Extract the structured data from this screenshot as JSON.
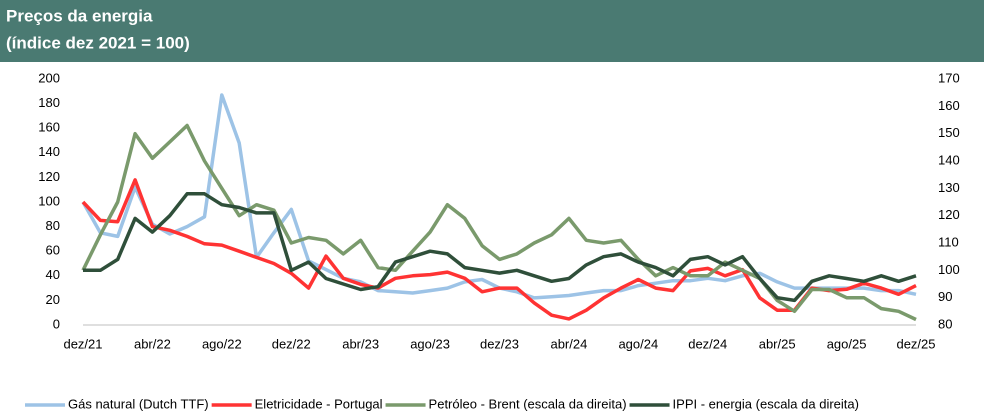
{
  "chart_data": {
    "type": "line",
    "title": "Preços da energia",
    "subtitle": "(índice dez 2021 = 100)",
    "categories": [
      "dez/21",
      null,
      null,
      null,
      "abr/22",
      null,
      null,
      null,
      "ago/22",
      null,
      null,
      null,
      "dez/22",
      null,
      null,
      null,
      "abr/23",
      null,
      null,
      null,
      "ago/23",
      null,
      null,
      null,
      "dez/23",
      null,
      null,
      null,
      "abr/24",
      null,
      null,
      null,
      "ago/24",
      null,
      null,
      null,
      "dez/24",
      null,
      null,
      null,
      "abr/25",
      null,
      null,
      null,
      "ago/25",
      null,
      null,
      null,
      "dez/25"
    ],
    "ylim": [
      0,
      200
    ],
    "yticks": [
      0,
      20,
      40,
      60,
      80,
      100,
      120,
      140,
      160,
      180,
      200
    ],
    "y2lim": [
      80,
      170
    ],
    "y2ticks": [
      80,
      90,
      100,
      110,
      120,
      130,
      140,
      150,
      160,
      170
    ],
    "legend": "bottom",
    "series": [
      {
        "name": "Gás natural (Dutch TTF)",
        "color": "#9dc3e6",
        "values": [
          100,
          75,
          72,
          112,
          82,
          74,
          80,
          88,
          187,
          148,
          55,
          75,
          94,
          52,
          45,
          38,
          35,
          28,
          27,
          26,
          28,
          30,
          35,
          37,
          30,
          27,
          22,
          23,
          24,
          26,
          28,
          28,
          32,
          34,
          36,
          36,
          38,
          36,
          40,
          42,
          35,
          30,
          30,
          30,
          30,
          30,
          28,
          28,
          25
        ]
      },
      {
        "name": "Eletricidade - Portugal",
        "color": "#ff3333",
        "values": [
          100,
          85,
          84,
          118,
          80,
          77,
          72,
          66,
          65,
          60,
          55,
          50,
          42,
          30,
          56,
          38,
          33,
          30,
          38,
          40,
          41,
          43,
          38,
          27,
          30,
          30,
          18,
          8,
          5,
          12,
          22,
          30,
          37,
          30,
          28,
          44,
          46,
          40,
          45,
          22,
          12,
          12,
          30,
          28,
          29,
          34,
          30,
          25,
          32
        ]
      },
      {
        "name": "Petróleo - Brent (escala da direita)",
        "color": "#7a9a6c",
        "axis": "y2",
        "values": [
          100,
          113,
          125,
          150,
          141,
          147,
          153,
          140,
          130,
          120,
          124,
          122,
          110,
          112,
          111,
          106,
          111,
          101,
          100,
          107,
          114,
          124,
          119,
          109,
          104,
          106,
          110,
          113,
          119,
          111,
          110,
          111,
          104,
          98,
          101,
          98,
          98,
          103,
          100,
          97,
          89,
          85,
          93,
          93,
          90,
          90,
          86,
          85,
          82
        ]
      },
      {
        "name": "IPPI - energia (escala da direita)",
        "color": "#2f4f3a",
        "axis": "y2",
        "values": [
          100,
          100,
          104,
          119,
          114,
          120,
          128,
          128,
          124,
          123,
          121,
          121,
          100,
          103,
          97,
          95,
          93,
          94,
          103,
          105,
          107,
          106,
          101,
          100,
          99,
          100,
          98,
          96,
          97,
          102,
          105,
          106,
          103,
          101,
          98,
          104,
          105,
          102,
          105,
          97,
          90,
          89,
          96,
          98,
          97,
          96,
          98,
          96,
          98
        ]
      }
    ]
  }
}
